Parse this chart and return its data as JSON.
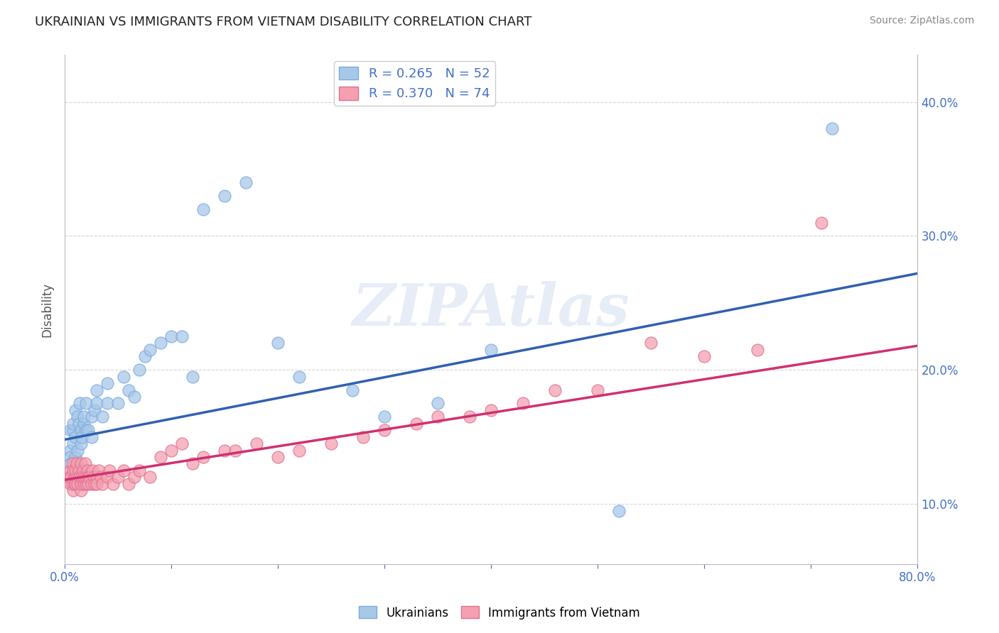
{
  "title": "UKRAINIAN VS IMMIGRANTS FROM VIETNAM DISABILITY CORRELATION CHART",
  "source": "Source: ZipAtlas.com",
  "ylabel": "Disability",
  "xlim": [
    0.0,
    0.8
  ],
  "ylim": [
    0.055,
    0.435
  ],
  "xticks": [
    0.0,
    0.1,
    0.2,
    0.3,
    0.4,
    0.5,
    0.6,
    0.7,
    0.8
  ],
  "xticklabels": [
    "0.0%",
    "",
    "",
    "",
    "",
    "",
    "",
    "",
    "80.0%"
  ],
  "yticks": [
    0.1,
    0.2,
    0.3,
    0.4
  ],
  "yticklabels": [
    "10.0%",
    "20.0%",
    "30.0%",
    "40.0%"
  ],
  "blue_R": 0.265,
  "blue_N": 52,
  "pink_R": 0.37,
  "pink_N": 74,
  "blue_color": "#a8c8e8",
  "pink_color": "#f4a0b0",
  "blue_line_color": "#3060b0",
  "pink_line_color": "#d03070",
  "watermark": "ZIPAtlas",
  "blue_line_x0": 0.0,
  "blue_line_y0": 0.148,
  "blue_line_x1": 0.8,
  "blue_line_y1": 0.272,
  "pink_line_x0": 0.0,
  "pink_line_y0": 0.118,
  "pink_line_x1": 0.8,
  "pink_line_y1": 0.218,
  "blue_x": [
    0.005,
    0.005,
    0.005,
    0.005,
    0.008,
    0.008,
    0.008,
    0.01,
    0.01,
    0.01,
    0.012,
    0.012,
    0.013,
    0.014,
    0.015,
    0.015,
    0.016,
    0.018,
    0.018,
    0.02,
    0.02,
    0.022,
    0.025,
    0.025,
    0.028,
    0.03,
    0.03,
    0.035,
    0.04,
    0.04,
    0.05,
    0.055,
    0.06,
    0.065,
    0.07,
    0.075,
    0.08,
    0.09,
    0.1,
    0.11,
    0.12,
    0.13,
    0.15,
    0.17,
    0.2,
    0.22,
    0.27,
    0.3,
    0.35,
    0.4,
    0.52,
    0.72
  ],
  "blue_y": [
    0.14,
    0.135,
    0.13,
    0.155,
    0.155,
    0.145,
    0.16,
    0.15,
    0.135,
    0.17,
    0.14,
    0.165,
    0.16,
    0.175,
    0.155,
    0.145,
    0.15,
    0.16,
    0.165,
    0.155,
    0.175,
    0.155,
    0.165,
    0.15,
    0.17,
    0.175,
    0.185,
    0.165,
    0.175,
    0.19,
    0.175,
    0.195,
    0.185,
    0.18,
    0.2,
    0.21,
    0.215,
    0.22,
    0.225,
    0.225,
    0.195,
    0.32,
    0.33,
    0.34,
    0.22,
    0.195,
    0.185,
    0.165,
    0.175,
    0.215,
    0.095,
    0.38
  ],
  "pink_x": [
    0.004,
    0.005,
    0.005,
    0.006,
    0.007,
    0.007,
    0.008,
    0.008,
    0.009,
    0.009,
    0.01,
    0.01,
    0.01,
    0.011,
    0.012,
    0.012,
    0.013,
    0.014,
    0.015,
    0.015,
    0.015,
    0.016,
    0.017,
    0.018,
    0.018,
    0.019,
    0.02,
    0.02,
    0.021,
    0.022,
    0.022,
    0.023,
    0.025,
    0.026,
    0.027,
    0.028,
    0.03,
    0.03,
    0.032,
    0.034,
    0.035,
    0.04,
    0.042,
    0.045,
    0.05,
    0.055,
    0.06,
    0.065,
    0.07,
    0.08,
    0.09,
    0.1,
    0.11,
    0.12,
    0.13,
    0.15,
    0.16,
    0.18,
    0.2,
    0.22,
    0.25,
    0.28,
    0.3,
    0.33,
    0.35,
    0.38,
    0.4,
    0.43,
    0.46,
    0.5,
    0.55,
    0.6,
    0.65,
    0.71
  ],
  "pink_y": [
    0.12,
    0.115,
    0.125,
    0.12,
    0.115,
    0.13,
    0.11,
    0.125,
    0.115,
    0.12,
    0.12,
    0.115,
    0.125,
    0.13,
    0.12,
    0.115,
    0.125,
    0.12,
    0.11,
    0.115,
    0.13,
    0.12,
    0.125,
    0.115,
    0.12,
    0.13,
    0.115,
    0.12,
    0.125,
    0.12,
    0.115,
    0.12,
    0.115,
    0.125,
    0.12,
    0.115,
    0.12,
    0.115,
    0.125,
    0.12,
    0.115,
    0.12,
    0.125,
    0.115,
    0.12,
    0.125,
    0.115,
    0.12,
    0.125,
    0.12,
    0.135,
    0.14,
    0.145,
    0.13,
    0.135,
    0.14,
    0.14,
    0.145,
    0.135,
    0.14,
    0.145,
    0.15,
    0.155,
    0.16,
    0.165,
    0.165,
    0.17,
    0.175,
    0.185,
    0.185,
    0.22,
    0.21,
    0.215,
    0.31
  ]
}
